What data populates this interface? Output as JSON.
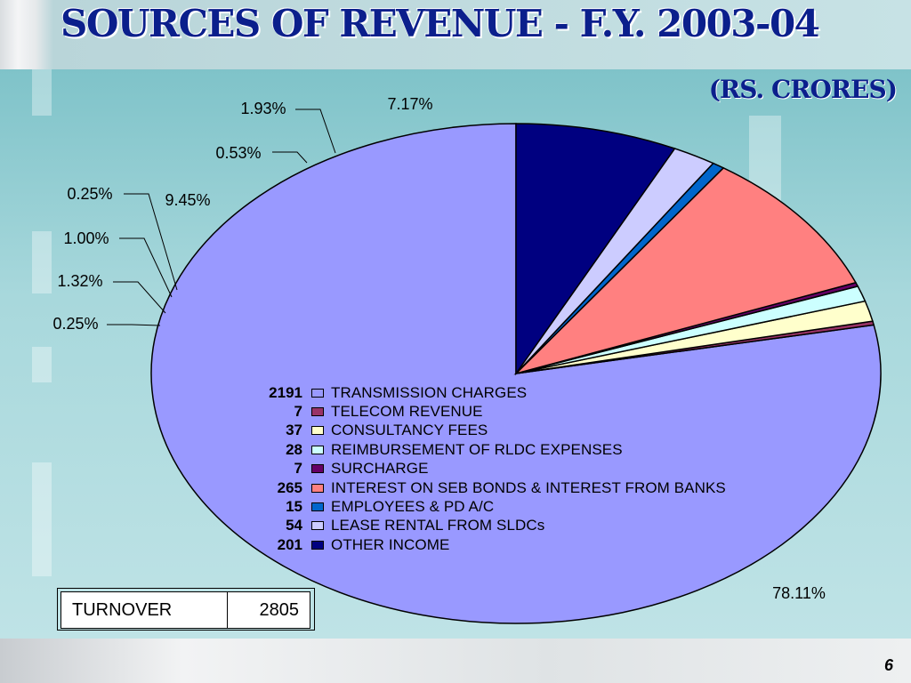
{
  "title": "SOURCES OF REVENUE - F.Y. 2003-04",
  "units": "(RS. CRORES)",
  "chart_data": {
    "type": "pie",
    "title": "SOURCES OF REVENUE - F.Y. 2003-04",
    "unit": "(RS. CRORES)",
    "slices": [
      {
        "label": "TRANSMISSION CHARGES",
        "value": 2191,
        "percent_label": "78.11%",
        "color": "#9999ff"
      },
      {
        "label": "TELECOM REVENUE",
        "value": 7,
        "percent_label": "0.25%",
        "color": "#993366"
      },
      {
        "label": "CONSULTANCY FEES",
        "value": 37,
        "percent_label": "1.32%",
        "color": "#ffffcc"
      },
      {
        "label": "REIMBURSEMENT OF RLDC EXPENSES",
        "value": 28,
        "percent_label": "1.00%",
        "color": "#ccffff"
      },
      {
        "label": "SURCHARGE",
        "value": 7,
        "percent_label": "0.25%",
        "color": "#660066"
      },
      {
        "label": "INTEREST ON SEB BONDS & INTEREST FROM BANKS",
        "value": 265,
        "percent_label": "9.45%",
        "color": "#ff8080"
      },
      {
        "label": "EMPLOYEES & PD A/C",
        "value": 15,
        "percent_label": "0.53%",
        "color": "#0066cc"
      },
      {
        "label": "LEASE RENTAL FROM SLDCs",
        "value": 54,
        "percent_label": "1.93%",
        "color": "#ccccff"
      },
      {
        "label": "OTHER INCOME",
        "value": 201,
        "percent_label": "7.17%",
        "color": "#000080"
      }
    ]
  },
  "turnover": {
    "label": "TURNOVER",
    "value": "2805"
  },
  "page_number": "6"
}
